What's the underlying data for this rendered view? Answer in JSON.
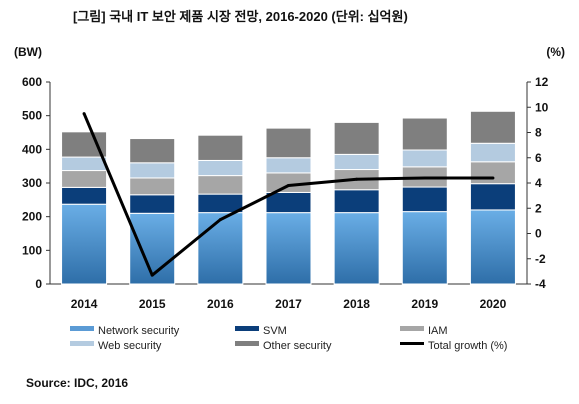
{
  "chart_data": {
    "type": "bar",
    "stacked": true,
    "title": "[그림] 국내 IT 보안 제품 시장 전망, 2016-2020 (단위: 십억원)",
    "ylabel": "(BW)",
    "y2label": "(%)",
    "categories": [
      "2014",
      "2015",
      "2016",
      "2017",
      "2018",
      "2019",
      "2020"
    ],
    "ylim": [
      0,
      600
    ],
    "yticks": [
      "0",
      "100",
      "200",
      "300",
      "400",
      "500",
      "600"
    ],
    "y2lim": [
      -4,
      12
    ],
    "y2ticks": [
      "-4",
      "-2",
      "0",
      "2",
      "4",
      "6",
      "8",
      "10",
      "12"
    ],
    "series": [
      {
        "name": "Network security",
        "color": "#5b9bd5",
        "values": [
          237,
          210,
          212,
          212,
          212,
          215,
          220
        ]
      },
      {
        "name": "SVM",
        "color": "#0b3e7a",
        "values": [
          50,
          55,
          55,
          60,
          68,
          73,
          78
        ]
      },
      {
        "name": "IAM",
        "color": "#a6a6a6",
        "values": [
          50,
          50,
          55,
          58,
          60,
          60,
          65
        ]
      },
      {
        "name": "Web security",
        "color": "#b4cbe0",
        "values": [
          40,
          45,
          45,
          45,
          45,
          50,
          55
        ]
      },
      {
        "name": "Other security",
        "color": "#7f7f7f",
        "values": [
          75,
          72,
          75,
          88,
          95,
          95,
          95
        ]
      }
    ],
    "line_series": {
      "name": "Total growth (%)",
      "color": "#000000",
      "axis": "right",
      "values": [
        9.5,
        -3.3,
        1.1,
        3.8,
        4.3,
        4.4,
        4.4
      ]
    },
    "legend_position": "bottom",
    "grid": false
  },
  "source": "Source: IDC, 2016"
}
